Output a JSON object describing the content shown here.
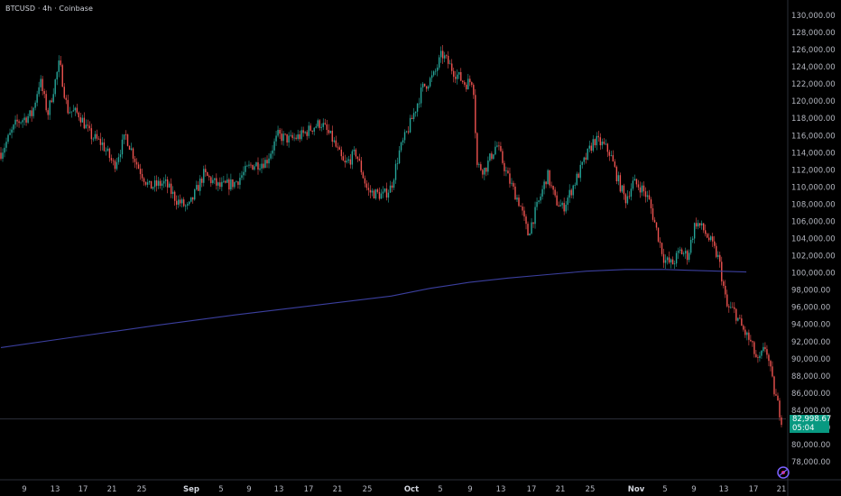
{
  "header": {
    "symbol": "BTCUSD · 4h · Coinbase"
  },
  "price_tag": {
    "price": "82,998.67",
    "countdown": "05:04"
  },
  "colors": {
    "up": "#26a69a",
    "down": "#ef5350",
    "ma": "#3b3f9e",
    "price_line": "#2a2e39",
    "tag": "#089981"
  },
  "chart_data": {
    "type": "candlestick",
    "y_tick_labels": [
      "78,000.00",
      "80,000.00",
      "82,000.00",
      "84,000.00",
      "86,000.00",
      "88,000.00",
      "90,000.00",
      "92,000.00",
      "94,000.00",
      "96,000.00",
      "98,000.00",
      "100,000.00",
      "102,000.00",
      "104,000.00",
      "106,000.00",
      "108,000.00",
      "110,000.00",
      "112,000.00",
      "114,000.00",
      "116,000.00",
      "118,000.00",
      "120,000.00",
      "122,000.00",
      "124,000.00",
      "126,000.00",
      "128,000.00",
      "130,000.00"
    ],
    "x_tick_labels": [
      {
        "text": "9",
        "major": false
      },
      {
        "text": "13",
        "major": false
      },
      {
        "text": "17",
        "major": false
      },
      {
        "text": "21",
        "major": false
      },
      {
        "text": "25",
        "major": false
      },
      {
        "text": "Sep",
        "major": true
      },
      {
        "text": "5",
        "major": false
      },
      {
        "text": "9",
        "major": false
      },
      {
        "text": "13",
        "major": false
      },
      {
        "text": "17",
        "major": false
      },
      {
        "text": "21",
        "major": false
      },
      {
        "text": "25",
        "major": false
      },
      {
        "text": "Oct",
        "major": true
      },
      {
        "text": "5",
        "major": false
      },
      {
        "text": "9",
        "major": false
      },
      {
        "text": "13",
        "major": false
      },
      {
        "text": "17",
        "major": false
      },
      {
        "text": "21",
        "major": false
      },
      {
        "text": "25",
        "major": false
      },
      {
        "text": "Nov",
        "major": true
      },
      {
        "text": "5",
        "major": false
      },
      {
        "text": "9",
        "major": false
      },
      {
        "text": "13",
        "major": false
      },
      {
        "text": "17",
        "major": false
      },
      {
        "text": "21",
        "major": false
      }
    ],
    "ylim": [
      76500,
      131000
    ],
    "current_price": 82998.67,
    "close_path": [
      {
        "t": 0.0,
        "p": 114000
      },
      {
        "t": 0.02,
        "p": 117500
      },
      {
        "t": 0.04,
        "p": 118500
      },
      {
        "t": 0.05,
        "p": 122500
      },
      {
        "t": 0.06,
        "p": 118500
      },
      {
        "t": 0.075,
        "p": 124500
      },
      {
        "t": 0.085,
        "p": 119000
      },
      {
        "t": 0.1,
        "p": 118500
      },
      {
        "t": 0.115,
        "p": 116000
      },
      {
        "t": 0.13,
        "p": 115000
      },
      {
        "t": 0.145,
        "p": 112500
      },
      {
        "t": 0.16,
        "p": 116000
      },
      {
        "t": 0.175,
        "p": 112500
      },
      {
        "t": 0.19,
        "p": 110000
      },
      {
        "t": 0.21,
        "p": 110500
      },
      {
        "t": 0.225,
        "p": 108500
      },
      {
        "t": 0.24,
        "p": 107500
      },
      {
        "t": 0.26,
        "p": 111500
      },
      {
        "t": 0.28,
        "p": 110000
      },
      {
        "t": 0.3,
        "p": 110500
      },
      {
        "t": 0.32,
        "p": 112500
      },
      {
        "t": 0.34,
        "p": 113000
      },
      {
        "t": 0.355,
        "p": 116000
      },
      {
        "t": 0.37,
        "p": 115500
      },
      {
        "t": 0.385,
        "p": 116000
      },
      {
        "t": 0.4,
        "p": 117000
      },
      {
        "t": 0.41,
        "p": 117500
      },
      {
        "t": 0.425,
        "p": 115500
      },
      {
        "t": 0.44,
        "p": 112500
      },
      {
        "t": 0.455,
        "p": 114000
      },
      {
        "t": 0.47,
        "p": 109500
      },
      {
        "t": 0.49,
        "p": 109000
      },
      {
        "t": 0.5,
        "p": 110000
      },
      {
        "t": 0.51,
        "p": 114000
      },
      {
        "t": 0.525,
        "p": 117500
      },
      {
        "t": 0.54,
        "p": 121500
      },
      {
        "t": 0.555,
        "p": 123000
      },
      {
        "t": 0.565,
        "p": 125500
      },
      {
        "t": 0.58,
        "p": 123500
      },
      {
        "t": 0.595,
        "p": 122000
      },
      {
        "t": 0.605,
        "p": 122500
      },
      {
        "t": 0.61,
        "p": 112500
      },
      {
        "t": 0.62,
        "p": 112000
      },
      {
        "t": 0.635,
        "p": 115000
      },
      {
        "t": 0.65,
        "p": 111000
      },
      {
        "t": 0.665,
        "p": 108000
      },
      {
        "t": 0.675,
        "p": 104500
      },
      {
        "t": 0.69,
        "p": 108500
      },
      {
        "t": 0.7,
        "p": 111500
      },
      {
        "t": 0.71,
        "p": 108500
      },
      {
        "t": 0.72,
        "p": 107500
      },
      {
        "t": 0.735,
        "p": 110500
      },
      {
        "t": 0.75,
        "p": 113500
      },
      {
        "t": 0.76,
        "p": 115500
      },
      {
        "t": 0.77,
        "p": 115000
      },
      {
        "t": 0.78,
        "p": 114000
      },
      {
        "t": 0.79,
        "p": 111000
      },
      {
        "t": 0.8,
        "p": 108500
      },
      {
        "t": 0.81,
        "p": 110500
      },
      {
        "t": 0.82,
        "p": 110000
      },
      {
        "t": 0.83,
        "p": 108500
      },
      {
        "t": 0.84,
        "p": 105000
      },
      {
        "t": 0.85,
        "p": 101500
      },
      {
        "t": 0.86,
        "p": 101000
      },
      {
        "t": 0.87,
        "p": 102500
      },
      {
        "t": 0.88,
        "p": 102000
      },
      {
        "t": 0.89,
        "p": 106000
      },
      {
        "t": 0.9,
        "p": 105000
      },
      {
        "t": 0.91,
        "p": 103500
      },
      {
        "t": 0.92,
        "p": 101500
      },
      {
        "t": 0.93,
        "p": 96000
      },
      {
        "t": 0.94,
        "p": 95500
      },
      {
        "t": 0.95,
        "p": 93500
      },
      {
        "t": 0.96,
        "p": 92000
      },
      {
        "t": 0.97,
        "p": 89500
      },
      {
        "t": 0.98,
        "p": 91500
      },
      {
        "t": 0.99,
        "p": 86500
      },
      {
        "t": 1.0,
        "p": 83000
      }
    ],
    "moving_average": [
      {
        "t": 0.0,
        "p": 91300
      },
      {
        "t": 0.1,
        "p": 92600
      },
      {
        "t": 0.2,
        "p": 93900
      },
      {
        "t": 0.3,
        "p": 95100
      },
      {
        "t": 0.4,
        "p": 96200
      },
      {
        "t": 0.5,
        "p": 97300
      },
      {
        "t": 0.55,
        "p": 98200
      },
      {
        "t": 0.6,
        "p": 98900
      },
      {
        "t": 0.65,
        "p": 99400
      },
      {
        "t": 0.7,
        "p": 99800
      },
      {
        "t": 0.75,
        "p": 100200
      },
      {
        "t": 0.8,
        "p": 100400
      },
      {
        "t": 0.85,
        "p": 100400
      },
      {
        "t": 0.88,
        "p": 100300
      },
      {
        "t": 0.955,
        "p": 100100
      }
    ]
  }
}
